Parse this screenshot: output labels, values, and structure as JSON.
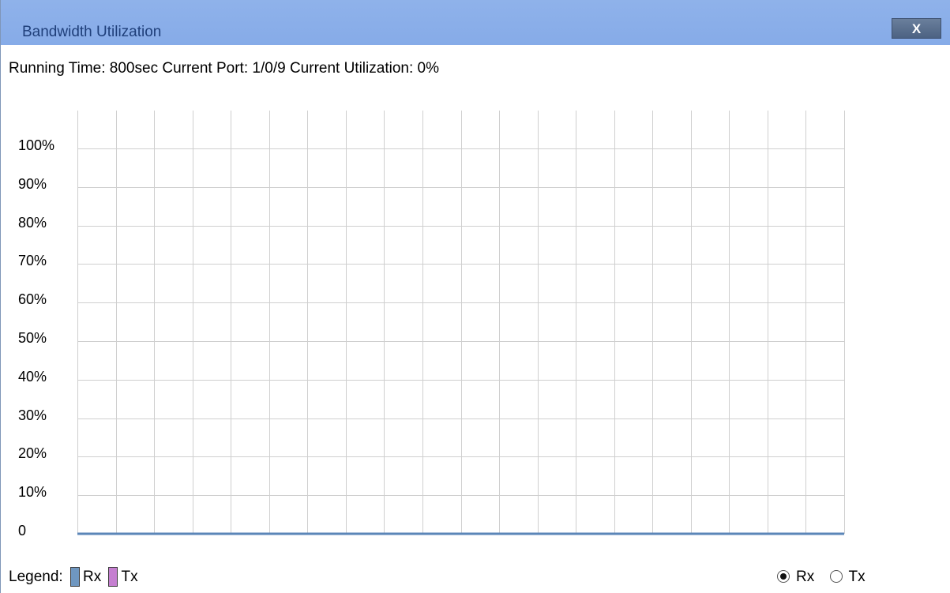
{
  "window": {
    "title": "Bandwidth Utilization",
    "close_glyph": "X",
    "titlebar_color": "#8fb2ea"
  },
  "status": {
    "running_time_label": "Running Time:",
    "running_time_value": "800sec",
    "current_port_label": "Current Port:",
    "current_port_value": "1/0/9",
    "current_util_label": "Current Utilization:",
    "current_util_value": "0%"
  },
  "chart_data": {
    "type": "line",
    "y_tick_labels": [
      "100%",
      "90%",
      "80%",
      "70%",
      "60%",
      "50%",
      "40%",
      "30%",
      "20%",
      "10%",
      "0"
    ],
    "ylim": [
      0,
      100
    ],
    "grid": true,
    "vertical_grid_lines": 21,
    "series": [
      {
        "name": "Rx",
        "color": "#5b86b8",
        "values": [
          0,
          0,
          0,
          0,
          0,
          0,
          0,
          0,
          0,
          0,
          0,
          0,
          0,
          0,
          0,
          0,
          0,
          0,
          0,
          0,
          0
        ]
      }
    ]
  },
  "legend": {
    "label": "Legend:",
    "items": [
      {
        "name": "Rx",
        "color": "#6f97c0"
      },
      {
        "name": "Tx",
        "color": "#c57fd0"
      }
    ]
  },
  "view_select": {
    "options": [
      {
        "label": "Rx",
        "checked": true
      },
      {
        "label": "Tx",
        "checked": false
      }
    ]
  }
}
